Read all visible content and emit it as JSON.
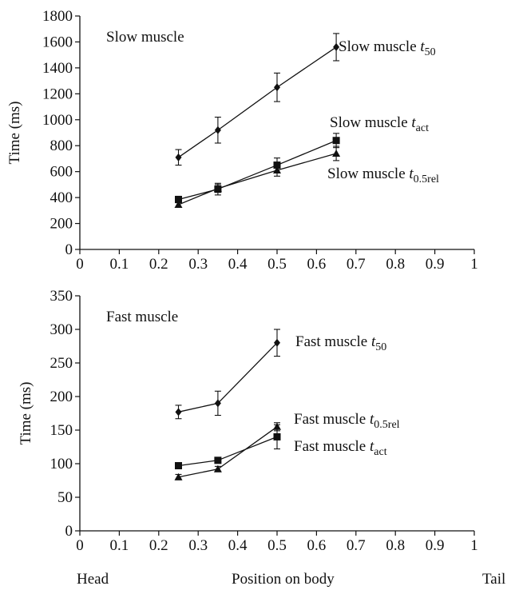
{
  "chart_data": [
    {
      "type": "line",
      "panel_title": "Slow muscle",
      "ylabel": "Time (ms)",
      "xlim": [
        0,
        1
      ],
      "ylim": [
        0,
        1800
      ],
      "x_ticks": [
        "0",
        "0.1",
        "0.2",
        "0.3",
        "0.4",
        "0.5",
        "0.6",
        "0.7",
        "0.8",
        "0.9",
        "1"
      ],
      "y_ticks": [
        "0",
        "200",
        "400",
        "600",
        "800",
        "1000",
        "1200",
        "1400",
        "1600",
        "1800"
      ],
      "x": [
        0.25,
        0.35,
        0.5,
        0.65
      ],
      "series": [
        {
          "name_main": "Slow muscle ",
          "name_var": "t",
          "name_sub": "50",
          "marker": "diamond",
          "values": [
            710,
            920,
            1250,
            1560
          ],
          "errors": [
            60,
            100,
            110,
            105
          ]
        },
        {
          "name_main": "Slow muscle ",
          "name_var": "t",
          "name_sub": "act",
          "marker": "square",
          "values": [
            385,
            465,
            650,
            840
          ],
          "errors": [
            25,
            45,
            55,
            55
          ]
        },
        {
          "name_main": "Slow muscle ",
          "name_var": "t",
          "name_sub": "0.5rel",
          "marker": "triangle",
          "values": [
            345,
            470,
            610,
            740
          ],
          "errors": [
            20,
            30,
            45,
            55
          ]
        }
      ],
      "grid": false
    },
    {
      "type": "line",
      "panel_title": "Fast muscle",
      "ylabel": "Time (ms)",
      "xlim": [
        0,
        1
      ],
      "ylim": [
        0,
        350
      ],
      "x_ticks": [
        "0",
        "0.1",
        "0.2",
        "0.3",
        "0.4",
        "0.5",
        "0.6",
        "0.7",
        "0.8",
        "0.9",
        "1"
      ],
      "y_ticks": [
        "0",
        "50",
        "100",
        "150",
        "200",
        "250",
        "300",
        "350"
      ],
      "x": [
        0.25,
        0.35,
        0.5
      ],
      "series": [
        {
          "name_main": "Fast muscle ",
          "name_var": "t",
          "name_sub": "50",
          "marker": "diamond",
          "values": [
            177,
            190,
            280
          ],
          "errors": [
            10,
            18,
            20
          ]
        },
        {
          "name_main": "Fast muscle ",
          "name_var": "t",
          "name_sub": "0.5rel",
          "marker": "triangle",
          "values": [
            80,
            92,
            155
          ],
          "errors": [
            4,
            4,
            6
          ]
        },
        {
          "name_main": "Fast muscle ",
          "name_var": "t",
          "name_sub": "act",
          "marker": "square",
          "values": [
            97,
            105,
            140
          ],
          "errors": [
            3,
            4,
            18
          ]
        }
      ],
      "grid": false
    }
  ],
  "footer": {
    "left": "Head",
    "center": "Position on body",
    "right": "Tail"
  }
}
